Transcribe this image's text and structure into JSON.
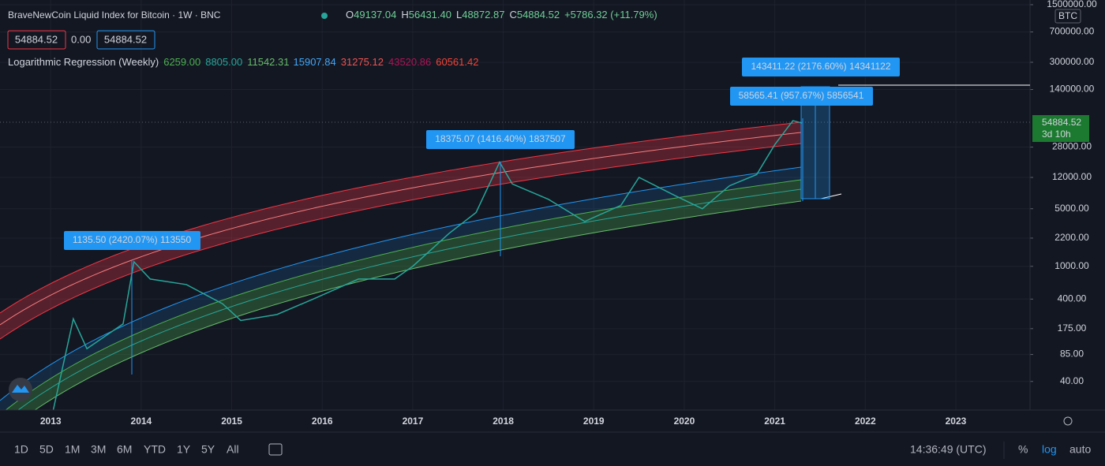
{
  "header": {
    "title": "BraveNewCoin Liquid Index for Bitcoin · 1W · BNC",
    "ohlc": [
      {
        "label": "O",
        "value": "49137.04"
      },
      {
        "label": "H",
        "value": "56431.40"
      },
      {
        "label": "L",
        "value": "48872.87"
      },
      {
        "label": "C",
        "value": "54884.52"
      }
    ],
    "change": "+5786.32 (+11.79%)",
    "price_boxes": [
      "54884.52",
      "0.00",
      "54884.52"
    ],
    "indicator": {
      "name": "Logarithmic Regression (Weekly)",
      "values": [
        "6259.00",
        "8805.00",
        "11542.31",
        "15907.84",
        "31275.12",
        "43520.86",
        "60561.42"
      ],
      "colors": [
        "#4caf50",
        "#26a69a",
        "#66bb6a",
        "#42a5f5",
        "#ef5350",
        "#ad1457",
        "#f44336"
      ]
    }
  },
  "chart_data": {
    "type": "line",
    "log_scale": true,
    "grid": true,
    "color": "#26a69a",
    "x": [
      2012.6,
      2013.0,
      2013.25,
      2013.4,
      2013.8,
      2013.92,
      2014.1,
      2014.5,
      2014.9,
      2015.1,
      2015.5,
      2015.9,
      2016.4,
      2016.8,
      2017.0,
      2017.4,
      2017.7,
      2017.96,
      2018.1,
      2018.5,
      2018.9,
      2019.3,
      2019.5,
      2019.9,
      2020.2,
      2020.5,
      2020.8,
      2021.0,
      2021.2,
      2021.3
    ],
    "values": [
      18,
      13,
      230,
      100,
      200,
      1135.5,
      700,
      600,
      350,
      220,
      260,
      400,
      700,
      700,
      1000,
      2500,
      4500,
      18375.07,
      10000,
      6500,
      3500,
      5500,
      12000,
      7200,
      5000,
      9500,
      13000,
      30000,
      58565.41,
      54884.52
    ],
    "xlim": [
      2012.44,
      2023.82
    ],
    "xticks": [
      2013,
      2014,
      2015,
      2016,
      2017,
      2018,
      2019,
      2020,
      2021,
      2022,
      2023
    ],
    "ylim": [
      18,
      1710000
    ],
    "yticks": [
      {
        "value": 1500000,
        "label": "1500000.00"
      },
      {
        "value": 700000,
        "label": "700000.00"
      },
      {
        "value": 300000,
        "label": "300000.00"
      },
      {
        "value": 140000,
        "label": "140000.00"
      },
      {
        "value": 28000,
        "label": "28000.00"
      },
      {
        "value": 12000,
        "label": "12000.00"
      },
      {
        "value": 5000,
        "label": "5000.00"
      },
      {
        "value": 2200,
        "label": "2200.00"
      },
      {
        "value": 1000,
        "label": "1000.00"
      },
      {
        "value": 400,
        "label": "400.00"
      },
      {
        "value": 175,
        "label": "175.00"
      },
      {
        "value": 85,
        "label": "85.00"
      },
      {
        "value": 40,
        "label": "40.00"
      }
    ],
    "currency": "BTC",
    "last_price": "54884.52",
    "countdown": "3d 10h",
    "annotations": [
      "1135.50 (2420.07%) 113550",
      "18375.07 (1416.40%) 1837507",
      "143411.22 (2176.60%) 14341122",
      "58565.41 (957.67%) 5856541"
    ]
  },
  "toolbar": {
    "ranges": [
      "1D",
      "5D",
      "1M",
      "3M",
      "6M",
      "YTD",
      "1Y",
      "5Y",
      "All"
    ],
    "time": "14:36:49 (UTC)",
    "scale_options": [
      "%",
      "log",
      "auto"
    ]
  }
}
